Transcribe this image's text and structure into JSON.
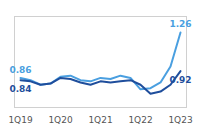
{
  "chart_data": {
    "type": "line",
    "categories": [
      "1Q19",
      null,
      null,
      null,
      "1Q20",
      null,
      null,
      null,
      "1Q21",
      null,
      null,
      null,
      "1Q22",
      null,
      null,
      null,
      "1Q23"
    ],
    "series": [
      {
        "color": "#4a9fe0",
        "values": [
          0.86,
          0.84,
          0.8,
          0.81,
          0.87,
          0.88,
          0.84,
          0.83,
          0.86,
          0.85,
          0.88,
          0.86,
          0.76,
          0.77,
          0.82,
          0.96,
          1.26
        ],
        "value_labels": [
          "0.86",
          null,
          null,
          null,
          null,
          null,
          null,
          null,
          null,
          null,
          null,
          null,
          null,
          null,
          null,
          null,
          "1.26"
        ]
      },
      {
        "color": "#1f4e9c",
        "values": [
          0.84,
          0.83,
          0.8,
          0.81,
          0.86,
          0.85,
          0.82,
          0.8,
          0.83,
          0.82,
          0.83,
          0.84,
          0.8,
          0.72,
          0.74,
          0.8,
          0.92
        ],
        "value_labels": [
          "0.84",
          null,
          null,
          null,
          null,
          null,
          null,
          null,
          null,
          null,
          null,
          null,
          null,
          null,
          null,
          null,
          "0.92"
        ]
      }
    ],
    "ylim": [
      0.6,
      1.4
    ],
    "yticks": [],
    "tick_labels": "x",
    "data_labels": true
  }
}
